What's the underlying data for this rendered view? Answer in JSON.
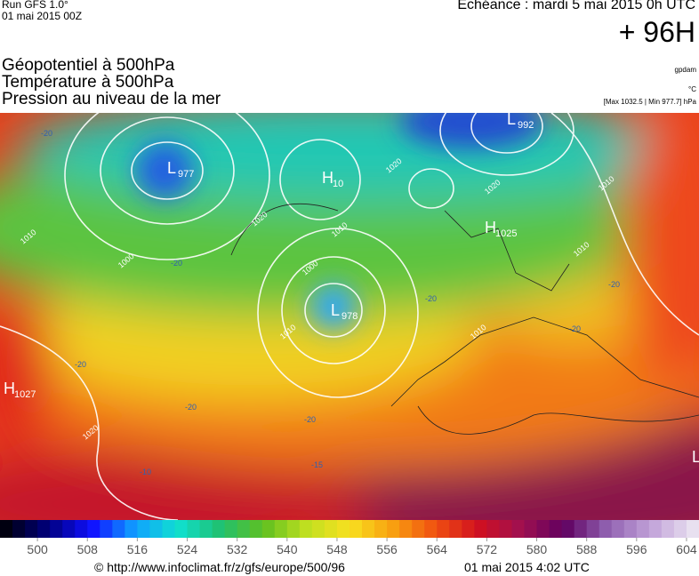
{
  "header": {
    "run": "Run GFS 1.0°",
    "run_date": "01 mai 2015 00Z",
    "echeance": "Echéance : mardi 5 mai 2015 0h UTC",
    "lead": "+ 96H",
    "fields": [
      "Géopotentiel à 500hPa",
      "Température à 500hPa",
      "Pression au niveau de la mer"
    ],
    "units": [
      "gpdam",
      "°C",
      "[Max 1032.5 | Min 977.7] hPa"
    ]
  },
  "map": {
    "centers": [
      {
        "letter": "L",
        "value": "977"
      },
      {
        "letter": "L",
        "value": "992"
      },
      {
        "letter": "H",
        "value": "10"
      },
      {
        "letter": "H",
        "value": "1025"
      },
      {
        "letter": "L",
        "value": "978"
      },
      {
        "letter": "H",
        "value": "1027"
      },
      {
        "letter": "L"
      }
    ],
    "isobar_labels": [
      "1020",
      "1020",
      "1020",
      "1010",
      "1010",
      "1010",
      "1000",
      "1010",
      "1020",
      "1010",
      "1000",
      "1010"
    ],
    "temperature_labels": [
      "-20",
      "-20",
      "-20",
      "-20",
      "-20",
      "-20",
      "-20",
      "-20",
      "-10",
      "-15"
    ]
  },
  "colorbar": {
    "lim": [
      494,
      606
    ],
    "ticks": [
      500,
      508,
      516,
      524,
      532,
      540,
      548,
      556,
      564,
      572,
      580,
      588,
      596,
      604
    ]
  },
  "footer": {
    "url": "© http://www.infoclimat.fr/z/gfs/europe/500/96",
    "date": "01 mai 2015  4:02 UTC"
  }
}
